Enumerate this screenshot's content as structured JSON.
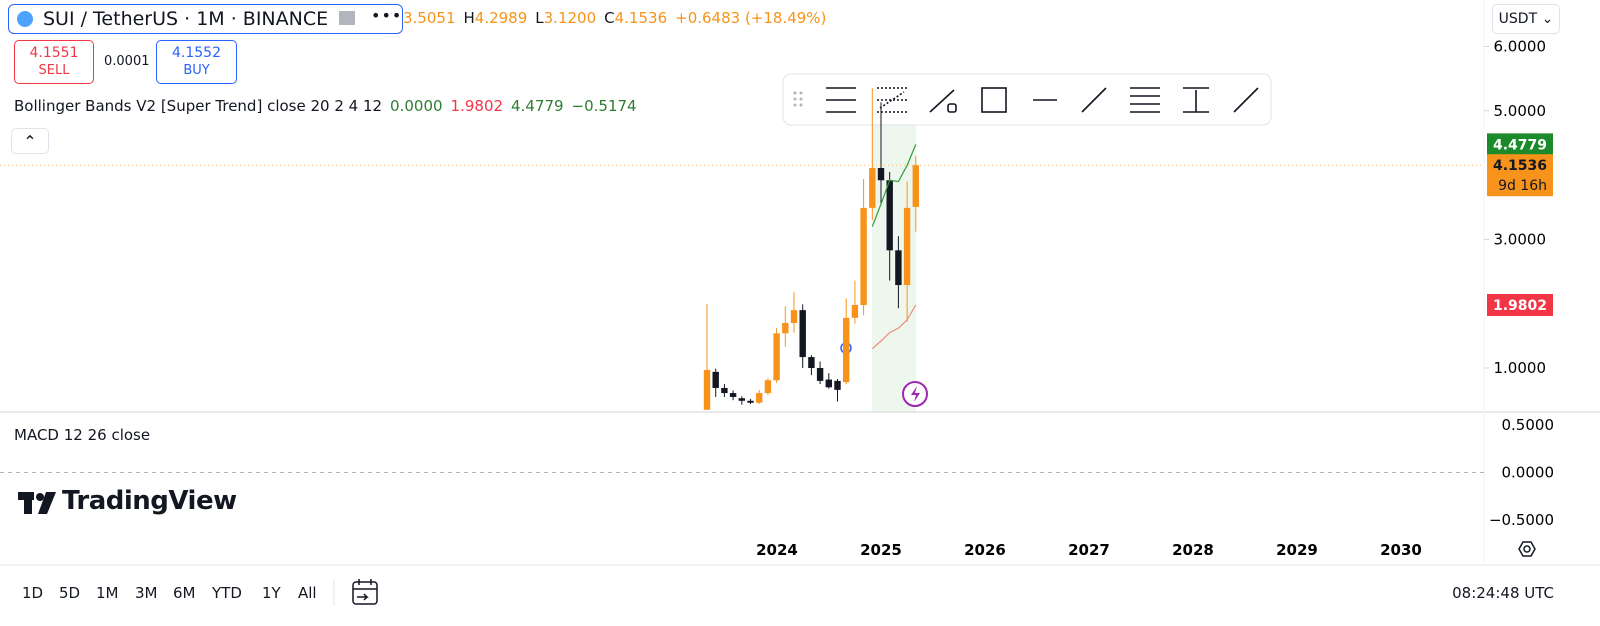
{
  "header": {
    "symbol": "SUI / TetherUS · 1M · BINANCE",
    "ohlc": [
      {
        "value": "3.5051"
      },
      {
        "label": "H",
        "value": "4.2989"
      },
      {
        "label": "L",
        "value": "3.1200"
      },
      {
        "label": "C",
        "value": "4.1536"
      }
    ],
    "change": "+0.6483 (+18.49%)",
    "currency": "USDT"
  },
  "trade": {
    "sell": {
      "price": "4.1551",
      "label": "SELL"
    },
    "spread": "0.0001",
    "buy": {
      "price": "4.1552",
      "label": "BUY"
    }
  },
  "indicator": {
    "name": "Bollinger Bands V2 [Super Trend] close 20 2 4 12",
    "values": [
      {
        "text": "0.0000",
        "color": "#2e7d32"
      },
      {
        "text": "1.9802",
        "color": "#f23645"
      },
      {
        "text": "4.4779",
        "color": "#2e7d32"
      },
      {
        "text": "−0.5174",
        "color": "#2e7d32"
      }
    ]
  },
  "chart": {
    "type": "candlestick",
    "up_color": "#f7931a",
    "down_color": "#131722",
    "candles": [
      {
        "o": 0.35,
        "h": 2.0,
        "l": 0.35,
        "c": 0.97
      },
      {
        "o": 0.94,
        "h": 0.99,
        "l": 0.55,
        "c": 0.69
      },
      {
        "o": 0.69,
        "h": 0.75,
        "l": 0.55,
        "c": 0.61
      },
      {
        "o": 0.61,
        "h": 0.65,
        "l": 0.5,
        "c": 0.55
      },
      {
        "o": 0.53,
        "h": 0.56,
        "l": 0.43,
        "c": 0.49
      },
      {
        "o": 0.49,
        "h": 0.52,
        "l": 0.44,
        "c": 0.46
      },
      {
        "o": 0.46,
        "h": 0.66,
        "l": 0.44,
        "c": 0.61
      },
      {
        "o": 0.61,
        "h": 0.84,
        "l": 0.58,
        "c": 0.81
      },
      {
        "o": 0.81,
        "h": 1.62,
        "l": 0.77,
        "c": 1.54
      },
      {
        "o": 1.54,
        "h": 1.96,
        "l": 1.33,
        "c": 1.7
      },
      {
        "o": 1.7,
        "h": 2.18,
        "l": 1.55,
        "c": 1.9
      },
      {
        "o": 1.9,
        "h": 1.99,
        "l": 1.0,
        "c": 1.17
      },
      {
        "o": 1.17,
        "h": 1.2,
        "l": 0.89,
        "c": 1.0
      },
      {
        "o": 1.0,
        "h": 1.1,
        "l": 0.75,
        "c": 0.8
      },
      {
        "o": 0.82,
        "h": 0.92,
        "l": 0.68,
        "c": 0.7
      },
      {
        "o": 0.8,
        "h": 0.83,
        "l": 0.48,
        "c": 0.66
      },
      {
        "o": 0.78,
        "h": 2.08,
        "l": 0.75,
        "c": 1.78
      },
      {
        "o": 1.78,
        "h": 2.36,
        "l": 1.69,
        "c": 1.98
      },
      {
        "o": 1.98,
        "h": 3.94,
        "l": 1.82,
        "c": 3.49
      },
      {
        "o": 3.49,
        "h": 5.35,
        "l": 3.3,
        "c": 4.11
      },
      {
        "o": 4.11,
        "h": 5.13,
        "l": 3.56,
        "c": 3.92
      },
      {
        "o": 3.92,
        "h": 4.05,
        "l": 2.36,
        "c": 2.83
      },
      {
        "o": 2.83,
        "h": 3.05,
        "l": 1.93,
        "c": 2.29
      },
      {
        "o": 2.29,
        "h": 3.9,
        "l": 1.72,
        "c": 3.49
      },
      {
        "o": 3.5051,
        "h": 4.2989,
        "l": 3.12,
        "c": 4.1536
      }
    ],
    "bb_upper": [
      null,
      null,
      null,
      null,
      null,
      null,
      null,
      null,
      null,
      null,
      null,
      null,
      null,
      null,
      null,
      null,
      null,
      null,
      null,
      3.2,
      3.55,
      3.92,
      3.9,
      4.15,
      4.4779
    ],
    "bb_lower": [
      null,
      null,
      null,
      null,
      null,
      null,
      null,
      null,
      null,
      null,
      null,
      null,
      null,
      null,
      null,
      null,
      null,
      null,
      null,
      1.3,
      1.42,
      1.55,
      1.62,
      1.75,
      1.9802
    ],
    "upper_color": "#2e9e3a",
    "lower_color": "#f08a7a",
    "ylim": [
      0.316,
      6.723
    ],
    "yticks": [
      {
        "value": 6,
        "label": "6.0000"
      },
      {
        "value": 5,
        "label": "5.0000"
      },
      {
        "value": 3,
        "label": "3.0000"
      },
      {
        "value": 1,
        "label": "1.0000"
      }
    ],
    "tags": [
      {
        "value": 4.4779,
        "color": "#1b8a2a"
      },
      {
        "value": 4.1536,
        "label": "4.1536",
        "sub": "9d 16h",
        "color": "#f7931a"
      },
      {
        "value": 1.9802,
        "color": "#f23645"
      }
    ],
    "years": [
      "2024",
      "2025",
      "2026",
      "2027",
      "2028",
      "2029",
      "2030"
    ]
  },
  "macd": {
    "name": "MACD 12 26 close",
    "ylim": [
      -0.984,
      0.637
    ],
    "yticks": [
      {
        "value": 0.5,
        "label": "0.5000"
      },
      {
        "value": 0,
        "label": "0.0000"
      },
      {
        "value": -0.5,
        "label": "−0.5000"
      }
    ]
  },
  "logo": "TradingView",
  "timeframes": [
    "1D",
    "5D",
    "1M",
    "3M",
    "6M",
    "YTD",
    "1Y",
    "All"
  ],
  "clock": "08:24:48 UTC"
}
